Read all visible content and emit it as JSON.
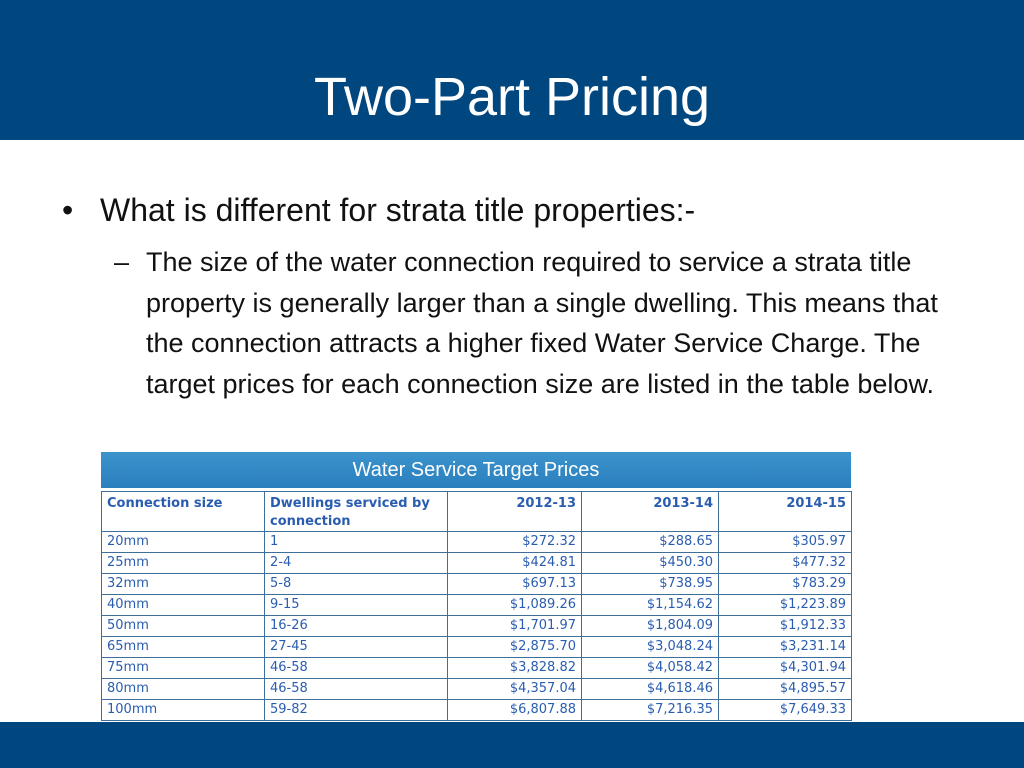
{
  "slide": {
    "title": "Two-Part Pricing",
    "bullet": {
      "marker": "•",
      "text": "What is different for strata title properties:-"
    },
    "sub_bullet": {
      "marker": "–",
      "text": "The size of the water connection required to service a strata title property is generally larger than a single dwelling. This means that the connection attracts a higher fixed Water Service Charge. The target prices for each connection size are listed in the table below."
    },
    "colors": {
      "title_bar": "#00467f",
      "table_header": "#2e86c1",
      "table_text": "#2a5db0"
    }
  },
  "table": {
    "caption": "Water Service Target Prices",
    "headers": [
      "Connection size",
      "Dwellings  serviced by connection",
      "2012-13",
      "2013-14",
      "2014-15"
    ],
    "rows": [
      [
        "20mm",
        "1",
        "$272.32",
        "$288.65",
        "$305.97"
      ],
      [
        "25mm",
        "2-4",
        "$424.81",
        "$450.30",
        "$477.32"
      ],
      [
        "32mm",
        "5-8",
        "$697.13",
        "$738.95",
        "$783.29"
      ],
      [
        "40mm",
        "9-15",
        "$1,089.26",
        "$1,154.62",
        "$1,223.89"
      ],
      [
        "50mm",
        "16-26",
        "$1,701.97",
        "$1,804.09",
        "$1,912.33"
      ],
      [
        "65mm",
        "27-45",
        "$2,875.70",
        "$3,048.24",
        "$3,231.14"
      ],
      [
        "75mm",
        "46-58",
        "$3,828.82",
        "$4,058.42",
        "$4,301.94"
      ],
      [
        "80mm",
        "46-58",
        "$4,357.04",
        "$4,618.46",
        "$4,895.57"
      ],
      [
        "100mm",
        "59-82",
        "$6,807.88",
        "$7,216.35",
        "$7,649.33"
      ]
    ]
  }
}
